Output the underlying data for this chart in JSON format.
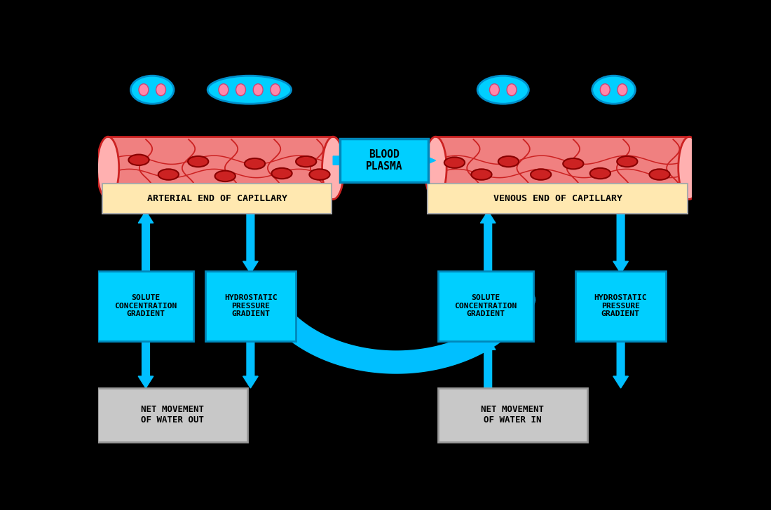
{
  "bg_color": "#000000",
  "capillary_fill": "#F08080",
  "capillary_stroke": "#CC2222",
  "rbc_fill": "#CC2222",
  "rbc_stroke": "#880000",
  "tissue_cell_fill": "#00CFFF",
  "tissue_cell_stroke": "#0090CC",
  "tissue_cell_nucleus": "#FF88AA",
  "arrow_color": "#00BFFF",
  "label_box_color": "#00CFFF",
  "arterial_label_bg": "#FFE8B0",
  "venous_label_bg": "#FFE8B0",
  "net_movement_bg": "#C8C8C8",
  "text_color": "#000000",
  "label_arterial": "ARTERIAL END OF CAPILLARY",
  "label_venous": "VENOUS END OF CAPILLARY",
  "label_blood_plasma": "BLOOD\nPLASMA",
  "label_solute_left": "SOLUTE\nCONCENTRATION\nGRADIENT",
  "label_hydrostatic_left": "HYDROSTATIC\nPRESSURE\nGRADIENT",
  "label_solute_right": "SOLUTE\nCONCENTRATION\nGRADIENT",
  "label_hydrostatic_right": "HYDROSTATIC\nPRESSURE\nGRADIENT",
  "label_net_out": "NET MOVEMENT\nOF WATER OUT",
  "label_net_in": "NET MOVEMENT\nOF WATER IN"
}
